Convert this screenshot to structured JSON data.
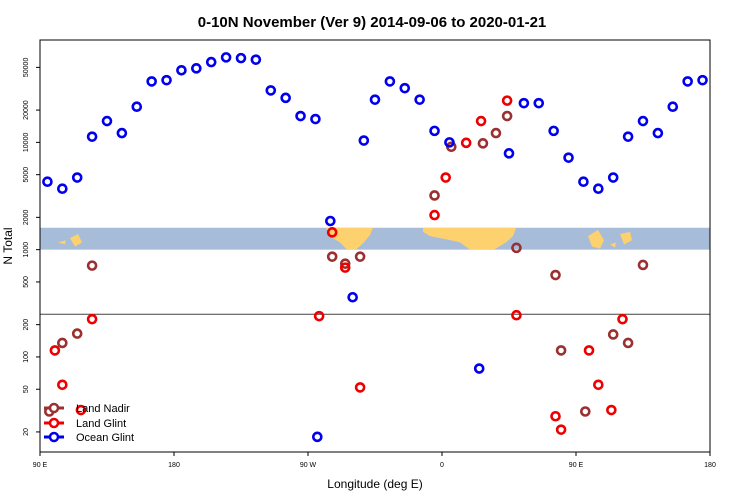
{
  "chart_data": {
    "type": "scatter",
    "title": "0-10N November (Ver 9)   2014-09-06 to 2020-01-21",
    "xlabel": "Longitude (deg E)",
    "ylabel": "N Total",
    "xlim": [
      0,
      360
    ],
    "ylim": [
      13,
      90000
    ],
    "yscale": "log",
    "reference_line_y": 250,
    "map_band_y": [
      1000,
      1600
    ],
    "x_ticks": [
      {
        "value": 0,
        "label": "90 E"
      },
      {
        "value": 72,
        "label": "180"
      },
      {
        "value": 144,
        "label": "90 W"
      },
      {
        "value": 216,
        "label": "0"
      },
      {
        "value": 288,
        "label": "90 E"
      },
      {
        "value": 360,
        "label": "180"
      }
    ],
    "y_ticks": [
      {
        "value": 20,
        "label": "20"
      },
      {
        "value": 50,
        "label": "50"
      },
      {
        "value": 100,
        "label": "100"
      },
      {
        "value": 200,
        "label": "200"
      },
      {
        "value": 500,
        "label": "500"
      },
      {
        "value": 1000,
        "label": "1000"
      },
      {
        "value": 2000,
        "label": "2000"
      },
      {
        "value": 5000,
        "label": "5000"
      },
      {
        "value": 10000,
        "label": "10000"
      },
      {
        "value": 20000,
        "label": "20000"
      },
      {
        "value": 50000,
        "label": "50000"
      }
    ],
    "legend": {
      "position": "bottom-left"
    },
    "series": [
      {
        "name": "Land Nadir",
        "color": "#9b3030",
        "points": [
          [
            5,
            31
          ],
          [
            12,
            135
          ],
          [
            20,
            165
          ],
          [
            28,
            710
          ],
          [
            157,
            860
          ],
          [
            164,
            740
          ],
          [
            172,
            860
          ],
          [
            212,
            3200
          ],
          [
            221,
            9100
          ],
          [
            238,
            9800
          ],
          [
            245,
            12200
          ],
          [
            251,
            17600
          ],
          [
            256,
            1040
          ],
          [
            277,
            580
          ],
          [
            280,
            115
          ],
          [
            293,
            31
          ],
          [
            308,
            162
          ],
          [
            316,
            135
          ],
          [
            324,
            720
          ]
        ]
      },
      {
        "name": "Land Glint",
        "color": "#ee0000",
        "points": [
          [
            8,
            115
          ],
          [
            12,
            55
          ],
          [
            22,
            32
          ],
          [
            28,
            225
          ],
          [
            150,
            240
          ],
          [
            157,
            1450
          ],
          [
            164,
            680
          ],
          [
            172,
            52
          ],
          [
            212,
            2100
          ],
          [
            218,
            4700
          ],
          [
            229,
            9900
          ],
          [
            237,
            15800
          ],
          [
            251,
            24500
          ],
          [
            256,
            245
          ],
          [
            277,
            28
          ],
          [
            280,
            21
          ],
          [
            295,
            115
          ],
          [
            300,
            55
          ],
          [
            307,
            32
          ],
          [
            313,
            225
          ]
        ]
      },
      {
        "name": "Ocean Glint",
        "color": "#0000ee",
        "points": [
          [
            4,
            4300
          ],
          [
            12,
            3700
          ],
          [
            20,
            4700
          ],
          [
            28,
            11300
          ],
          [
            36,
            15800
          ],
          [
            44,
            12200
          ],
          [
            52,
            21500
          ],
          [
            60,
            37000
          ],
          [
            68,
            38000
          ],
          [
            76,
            47000
          ],
          [
            84,
            49000
          ],
          [
            92,
            56000
          ],
          [
            100,
            62000
          ],
          [
            108,
            61000
          ],
          [
            116,
            59000
          ],
          [
            124,
            30500
          ],
          [
            132,
            26000
          ],
          [
            140,
            17600
          ],
          [
            148,
            16500
          ],
          [
            156,
            1850
          ],
          [
            168,
            360
          ],
          [
            174,
            10400
          ],
          [
            180,
            25000
          ],
          [
            188,
            37000
          ],
          [
            196,
            32000
          ],
          [
            204,
            25000
          ],
          [
            212,
            12800
          ],
          [
            220,
            10000
          ],
          [
            236,
            78
          ],
          [
            252,
            7900
          ],
          [
            260,
            23200
          ],
          [
            268,
            23200
          ],
          [
            276,
            12800
          ],
          [
            284,
            7200
          ],
          [
            292,
            4300
          ],
          [
            300,
            3700
          ],
          [
            308,
            4700
          ],
          [
            316,
            11300
          ],
          [
            324,
            15800
          ],
          [
            332,
            12200
          ],
          [
            340,
            21500
          ],
          [
            348,
            37000
          ],
          [
            356,
            38000
          ]
        ]
      },
      {
        "name": "Ocean Glint",
        "color": "#0000ee",
        "points": [
          [
            149,
            18
          ]
        ]
      }
    ]
  }
}
